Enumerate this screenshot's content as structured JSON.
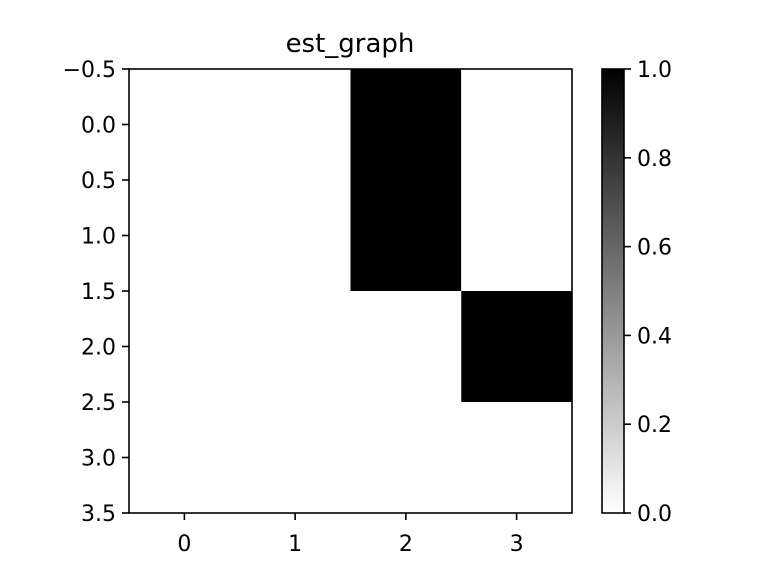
{
  "chart_data": {
    "type": "heatmap",
    "title": "est_graph",
    "xlabel": "",
    "ylabel": "",
    "x_ticks": [
      "0",
      "1",
      "2",
      "3"
    ],
    "y_ticks": [
      "−0.5",
      "0.0",
      "0.5",
      "1.0",
      "1.5",
      "2.0",
      "2.5",
      "3.0",
      "3.5"
    ],
    "y_tick_values": [
      -0.5,
      0.0,
      0.5,
      1.0,
      1.5,
      2.0,
      2.5,
      3.0,
      3.5
    ],
    "xlim": [
      -0.5,
      3.5
    ],
    "ylim": [
      3.5,
      -0.5
    ],
    "matrix": [
      [
        0,
        0,
        1,
        0
      ],
      [
        0,
        0,
        1,
        0
      ],
      [
        0,
        0,
        0,
        1
      ],
      [
        0,
        0,
        0,
        0
      ]
    ],
    "colormap": "Greys",
    "colorbar": {
      "range": [
        0.0,
        1.0
      ],
      "ticks": [
        "0.0",
        "0.2",
        "0.4",
        "0.6",
        "0.8",
        "1.0"
      ],
      "tick_values": [
        0.0,
        0.2,
        0.4,
        0.6,
        0.8,
        1.0
      ]
    },
    "grid": false
  }
}
